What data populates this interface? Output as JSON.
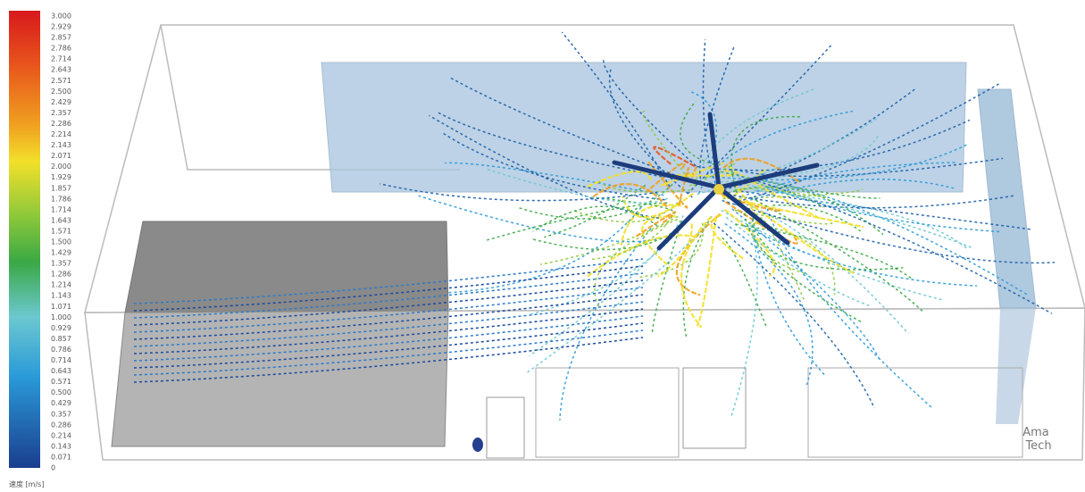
{
  "legend": {
    "labels": [
      "3.000",
      "2.929",
      "2.857",
      "2.786",
      "2.714",
      "2.643",
      "2.571",
      "2.500",
      "2.429",
      "2.357",
      "2.286",
      "2.214",
      "2.143",
      "2.071",
      "2.000",
      "1.929",
      "1.857",
      "1.786",
      "1.714",
      "1.643",
      "1.571",
      "1.500",
      "1.429",
      "1.357",
      "1.286",
      "1.214",
      "1.143",
      "1.071",
      "1.000",
      "0.929",
      "0.857",
      "0.786",
      "0.714",
      "0.643",
      "0.571",
      "0.500",
      "0.429",
      "0.357",
      "0.286",
      "0.214",
      "0.143",
      "0.071",
      "0"
    ],
    "title": "速度 [m/s]"
  },
  "logo": {
    "line1": "Ama",
    "line2": "Tech"
  }
}
